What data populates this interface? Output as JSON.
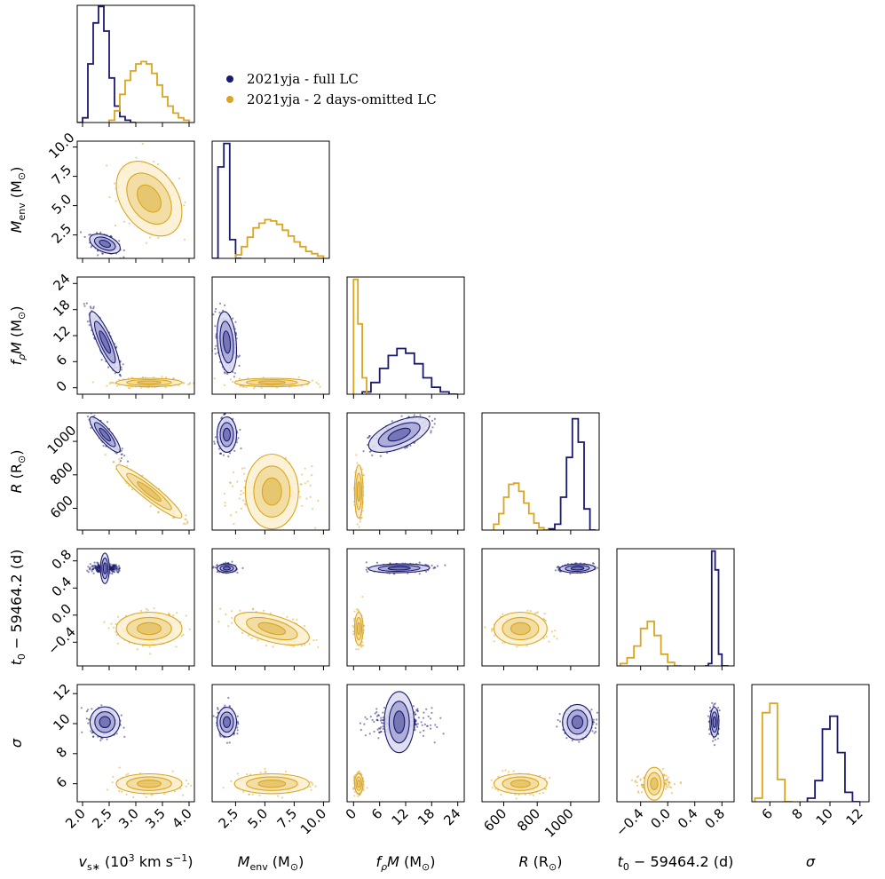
{
  "chart_data": {
    "type": "scatter",
    "kind": "corner plot",
    "colors": {
      "full": "#191970",
      "omitted": "#DAA520"
    },
    "legend": {
      "placement": "upper-center",
      "entries": [
        "2021yja - full LC",
        "2021yja - 2 days-omitted LC"
      ]
    },
    "params": [
      {
        "key": "vs",
        "label": "v_s* (10^3 km s^-1)",
        "range": [
          1.9,
          4.1
        ],
        "ticks": [
          2.0,
          2.5,
          3.0,
          3.5,
          4.0
        ],
        "tick_labels": [
          "2.0",
          "2.5",
          "3.0",
          "3.5",
          "4.0"
        ],
        "show_y_ticks": false
      },
      {
        "key": "menv",
        "label": "M_env (M☉)",
        "range": [
          0.5,
          10.5
        ],
        "ticks": [
          2.5,
          5.0,
          7.5,
          10.0
        ],
        "tick_labels": [
          "2.5",
          "5.0",
          "7.5",
          "10.0"
        ],
        "show_y_ticks": true
      },
      {
        "key": "frhoM",
        "label": "f_ρM (M☉)",
        "range": [
          -1.5,
          25.5
        ],
        "ticks": [
          0,
          6,
          12,
          18,
          24
        ],
        "tick_labels": [
          "0",
          "6",
          "12",
          "18",
          "24"
        ],
        "show_y_ticks": true
      },
      {
        "key": "R",
        "label": "R (R☉)",
        "range": [
          470,
          1170
        ],
        "ticks": [
          600,
          800,
          1000
        ],
        "tick_labels": [
          "600",
          "800",
          "1000"
        ],
        "show_y_ticks": true
      },
      {
        "key": "t0",
        "label": "t0 − 59464.2 (d)",
        "range": [
          -0.75,
          0.98
        ],
        "ticks": [
          -0.4,
          0.0,
          0.4,
          0.8
        ],
        "tick_labels": [
          "−0.4",
          "0.0",
          "0.4",
          "0.8"
        ],
        "show_y_ticks": true
      },
      {
        "key": "sigma",
        "label": "σ",
        "range": [
          4.8,
          12.6
        ],
        "ticks": [
          6,
          8,
          10,
          12
        ],
        "tick_labels": [
          "6",
          "8",
          "10",
          "12"
        ],
        "show_y_ticks": true
      }
    ],
    "series": [
      {
        "name": "2021yja - full LC",
        "color": "#191970",
        "mean": {
          "vs": 2.42,
          "menv": 1.75,
          "frhoM": 10.5,
          "R": 1040,
          "t0": 0.69,
          "sigma": 10.1
        },
        "std": {
          "vs": 0.13,
          "menv": 0.38,
          "frhoM": 3.2,
          "R": 48,
          "t0": 0.03,
          "sigma": 0.45
        },
        "corr": {
          "vs|menv": -0.45,
          "vs|frhoM": -0.85,
          "vs|R": -0.85,
          "menv|frhoM": -0.25,
          "frhoM|R": 0.6,
          "vs|t0": 0.0,
          "menv|t0": 0.0,
          "frhoM|t0": 0.1,
          "R|t0": 0.1
        },
        "hist": {
          "vs": {
            "edges": [
              1.9,
              2.0,
              2.1,
              2.2,
              2.3,
              2.4,
              2.5,
              2.6,
              2.7,
              2.8,
              2.9,
              3.0
            ],
            "counts": [
              0.0,
              0.04,
              0.5,
              0.85,
              0.99,
              0.78,
              0.38,
              0.14,
              0.05,
              0.02,
              0.0
            ]
          },
          "menv": {
            "edges": [
              0.5,
              1.0,
              1.5,
              2.0,
              2.5,
              3.0
            ],
            "counts": [
              0.0,
              0.78,
              0.98,
              0.16,
              0.0
            ]
          },
          "frhoM": {
            "edges": [
              2,
              4,
              6,
              8,
              10,
              12,
              14,
              16,
              18,
              20,
              22,
              24
            ],
            "counts": [
              0.02,
              0.1,
              0.22,
              0.33,
              0.39,
              0.35,
              0.26,
              0.14,
              0.06,
              0.02,
              0.0
            ]
          },
          "R": {
            "edges": [
              870,
              905,
              940,
              975,
              1010,
              1045,
              1080,
              1115,
              1150
            ],
            "counts": [
              0.01,
              0.05,
              0.28,
              0.62,
              0.95,
              0.75,
              0.18,
              0.0
            ]
          },
          "t0": {
            "edges": [
              0.55,
              0.6,
              0.65,
              0.7,
              0.75,
              0.8,
              0.85,
              0.9
            ],
            "counts": [
              0.0,
              0.02,
              0.98,
              0.82,
              0.1,
              0.0,
              0.0
            ]
          },
          "sigma": {
            "edges": [
              8.5,
              9.0,
              9.5,
              10.0,
              10.5,
              11.0,
              11.5,
              12.0
            ],
            "counts": [
              0.03,
              0.18,
              0.62,
              0.73,
              0.42,
              0.08,
              0.0
            ]
          }
        }
      },
      {
        "name": "2021yja - 2 days-omitted LC",
        "color": "#DAA520",
        "mean": {
          "vs": 3.25,
          "menv": 5.6,
          "frhoM": 1.2,
          "R": 700,
          "t0": -0.2,
          "sigma": 6.0
        },
        "std": {
          "vs": 0.28,
          "menv": 1.45,
          "frhoM": 0.45,
          "R": 72,
          "t0": 0.11,
          "sigma": 0.3
        },
        "corr": {
          "vs|menv": -0.35,
          "vs|frhoM": 0.0,
          "vs|R": -0.93,
          "menv|frhoM": 0.0,
          "frhoM|R": 0.0,
          "vs|t0": 0.0,
          "menv|t0": -0.55,
          "frhoM|t0": 0.0,
          "R|t0": 0.0
        },
        "hist": {
          "vs": {
            "edges": [
              2.5,
              2.6,
              2.7,
              2.8,
              2.9,
              3.0,
              3.1,
              3.2,
              3.3,
              3.4,
              3.5,
              3.6,
              3.7,
              3.8,
              3.9,
              4.0
            ],
            "counts": [
              0.02,
              0.1,
              0.24,
              0.36,
              0.44,
              0.5,
              0.52,
              0.5,
              0.42,
              0.32,
              0.22,
              0.14,
              0.08,
              0.04,
              0.02
            ]
          },
          "menv": {
            "edges": [
              2.5,
              3.0,
              3.5,
              4.0,
              4.5,
              5.0,
              5.5,
              6.0,
              6.5,
              7.0,
              7.5,
              8.0,
              8.5,
              9.0,
              9.5,
              10.0
            ],
            "counts": [
              0.03,
              0.1,
              0.18,
              0.26,
              0.3,
              0.33,
              0.32,
              0.29,
              0.24,
              0.19,
              0.14,
              0.1,
              0.06,
              0.04,
              0.02
            ]
          },
          "frhoM": {
            "edges": [
              0,
              1,
              2,
              3,
              4
            ],
            "counts": [
              0.98,
              0.6,
              0.14,
              0.0
            ]
          },
          "R": {
            "edges": [
              540,
              570,
              600,
              630,
              660,
              690,
              720,
              750,
              780,
              810,
              840,
              870
            ],
            "counts": [
              0.05,
              0.14,
              0.28,
              0.39,
              0.4,
              0.33,
              0.23,
              0.14,
              0.06,
              0.02,
              0.0
            ]
          },
          "t0": {
            "edges": [
              -0.7,
              -0.6,
              -0.5,
              -0.4,
              -0.3,
              -0.2,
              -0.1,
              0.0,
              0.1,
              0.2
            ],
            "counts": [
              0.02,
              0.07,
              0.17,
              0.32,
              0.38,
              0.26,
              0.1,
              0.03,
              0.0
            ]
          },
          "sigma": {
            "edges": [
              5.0,
              5.5,
              6.0,
              6.5,
              7.0,
              7.5
            ],
            "counts": [
              0.03,
              0.76,
              0.84,
              0.19,
              0.0
            ]
          }
        }
      }
    ]
  }
}
